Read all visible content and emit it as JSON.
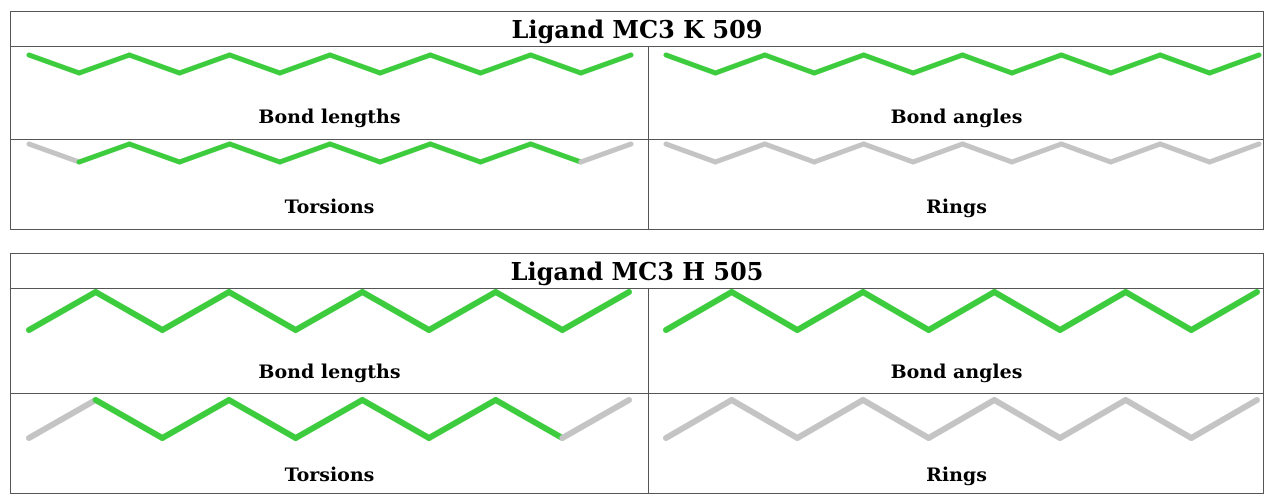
{
  "colors": {
    "good": "#3dcc3d",
    "neutral": "#c4c4c4"
  },
  "panels": [
    {
      "title": "Ligand MC3 K 509",
      "cells": [
        {
          "label": "Bond lengths",
          "colors": [
            "good",
            "good",
            "good",
            "good",
            "good",
            "good",
            "good",
            "good",
            "good",
            "good",
            "good",
            "good"
          ]
        },
        {
          "label": "Bond angles",
          "colors": [
            "good",
            "good",
            "good",
            "good",
            "good",
            "good",
            "good",
            "good",
            "good",
            "good",
            "good",
            "good"
          ]
        },
        {
          "label": "Torsions",
          "colors": [
            "neutral",
            "good",
            "good",
            "good",
            "good",
            "good",
            "good",
            "good",
            "good",
            "good",
            "good",
            "neutral"
          ]
        },
        {
          "label": "Rings",
          "colors": [
            "neutral",
            "neutral",
            "neutral",
            "neutral",
            "neutral",
            "neutral",
            "neutral",
            "neutral",
            "neutral",
            "neutral",
            "neutral",
            "neutral"
          ]
        }
      ]
    },
    {
      "title": "Ligand MC3 H 505",
      "cells": [
        {
          "label": "Bond lengths",
          "colors": [
            "good",
            "good",
            "good",
            "good",
            "good",
            "good",
            "good",
            "good",
            "good"
          ]
        },
        {
          "label": "Bond angles",
          "colors": [
            "good",
            "good",
            "good",
            "good",
            "good",
            "good",
            "good",
            "good",
            "good"
          ]
        },
        {
          "label": "Torsions",
          "colors": [
            "neutral",
            "good",
            "good",
            "good",
            "good",
            "good",
            "good",
            "good",
            "neutral"
          ]
        },
        {
          "label": "Rings",
          "colors": [
            "neutral",
            "neutral",
            "neutral",
            "neutral",
            "neutral",
            "neutral",
            "neutral",
            "neutral",
            "neutral"
          ]
        }
      ]
    }
  ]
}
